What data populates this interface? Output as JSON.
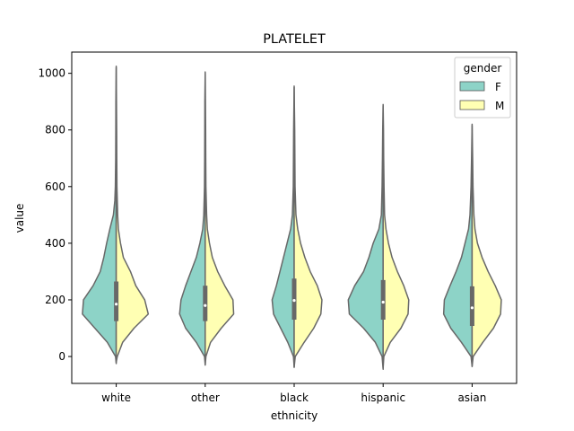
{
  "chart_data": {
    "type": "violin",
    "title": "PLATELET",
    "xlabel": "ethnicity",
    "ylabel": "value",
    "ylim": [
      -95,
      1075
    ],
    "yticks": [
      0,
      200,
      400,
      600,
      800,
      1000
    ],
    "categories": [
      "white",
      "other",
      "black",
      "hispanic",
      "asian"
    ],
    "split": true,
    "legend": {
      "title": "gender",
      "placement": "top-right",
      "entries": [
        {
          "label": "F",
          "color": "#8dd3c7"
        },
        {
          "label": "M",
          "color": "#ffffb3"
        }
      ]
    },
    "series": [
      {
        "name": "F",
        "color": "#8dd3c7",
        "side": "left",
        "violins": [
          {
            "category": "white",
            "min": -25,
            "max": 1025,
            "median": 185,
            "q1": 125,
            "q3": 265,
            "density": [
              [
                -25,
                0
              ],
              [
                0,
                0.02
              ],
              [
                50,
                0.25
              ],
              [
                100,
                0.6
              ],
              [
                150,
                0.95
              ],
              [
                200,
                0.92
              ],
              [
                250,
                0.65
              ],
              [
                300,
                0.45
              ],
              [
                350,
                0.35
              ],
              [
                400,
                0.27
              ],
              [
                450,
                0.18
              ],
              [
                500,
                0.08
              ],
              [
                550,
                0.04
              ],
              [
                600,
                0.025
              ],
              [
                700,
                0.015
              ],
              [
                800,
                0.012
              ],
              [
                900,
                0.01
              ],
              [
                1025,
                0
              ]
            ]
          },
          {
            "category": "other",
            "min": -30,
            "max": 1005,
            "median": 180,
            "q1": 125,
            "q3": 250,
            "density": [
              [
                -30,
                0
              ],
              [
                0,
                0.02
              ],
              [
                50,
                0.25
              ],
              [
                100,
                0.55
              ],
              [
                150,
                0.72
              ],
              [
                200,
                0.68
              ],
              [
                250,
                0.55
              ],
              [
                300,
                0.4
              ],
              [
                350,
                0.25
              ],
              [
                400,
                0.15
              ],
              [
                450,
                0.07
              ],
              [
                500,
                0.04
              ],
              [
                600,
                0.02
              ],
              [
                700,
                0.015
              ],
              [
                800,
                0.012
              ],
              [
                900,
                0.01
              ],
              [
                1005,
                0
              ]
            ]
          },
          {
            "category": "black",
            "min": -38,
            "max": 955,
            "median": 198,
            "q1": 130,
            "q3": 275,
            "density": [
              [
                -38,
                0
              ],
              [
                0,
                0.02
              ],
              [
                50,
                0.18
              ],
              [
                100,
                0.38
              ],
              [
                150,
                0.58
              ],
              [
                200,
                0.62
              ],
              [
                250,
                0.5
              ],
              [
                300,
                0.4
              ],
              [
                350,
                0.3
              ],
              [
                400,
                0.2
              ],
              [
                450,
                0.1
              ],
              [
                500,
                0.05
              ],
              [
                600,
                0.025
              ],
              [
                700,
                0.02
              ],
              [
                800,
                0.015
              ],
              [
                955,
                0
              ]
            ]
          },
          {
            "category": "hispanic",
            "min": -45,
            "max": 890,
            "median": 192,
            "q1": 130,
            "q3": 270,
            "density": [
              [
                -45,
                0
              ],
              [
                0,
                0.03
              ],
              [
                50,
                0.22
              ],
              [
                100,
                0.55
              ],
              [
                150,
                0.95
              ],
              [
                200,
                0.98
              ],
              [
                250,
                0.8
              ],
              [
                300,
                0.55
              ],
              [
                350,
                0.4
              ],
              [
                400,
                0.28
              ],
              [
                450,
                0.12
              ],
              [
                500,
                0.05
              ],
              [
                600,
                0.03
              ],
              [
                700,
                0.02
              ],
              [
                800,
                0.012
              ],
              [
                890,
                0
              ]
            ]
          },
          {
            "category": "asian",
            "min": -35,
            "max": 820,
            "median": 172,
            "q1": 108,
            "q3": 248,
            "density": [
              [
                -35,
                0
              ],
              [
                0,
                0.03
              ],
              [
                50,
                0.3
              ],
              [
                100,
                0.6
              ],
              [
                150,
                0.8
              ],
              [
                200,
                0.78
              ],
              [
                250,
                0.62
              ],
              [
                300,
                0.45
              ],
              [
                350,
                0.3
              ],
              [
                400,
                0.2
              ],
              [
                450,
                0.1
              ],
              [
                500,
                0.06
              ],
              [
                600,
                0.03
              ],
              [
                700,
                0.015
              ],
              [
                820,
                0
              ]
            ]
          }
        ]
      },
      {
        "name": "M",
        "color": "#ffffb3",
        "side": "right",
        "violins": [
          {
            "category": "white",
            "min": -20,
            "max": 1020,
            "median": 185,
            "q1": 125,
            "q3": 265,
            "density": [
              [
                -20,
                0
              ],
              [
                0,
                0.03
              ],
              [
                50,
                0.18
              ],
              [
                100,
                0.5
              ],
              [
                150,
                0.9
              ],
              [
                200,
                0.8
              ],
              [
                250,
                0.55
              ],
              [
                300,
                0.4
              ],
              [
                350,
                0.2
              ],
              [
                400,
                0.12
              ],
              [
                450,
                0.06
              ],
              [
                500,
                0.04
              ],
              [
                600,
                0.02
              ],
              [
                700,
                0.015
              ],
              [
                800,
                0.012
              ],
              [
                1020,
                0
              ]
            ]
          },
          {
            "category": "other",
            "min": -30,
            "max": 1000,
            "median": 180,
            "q1": 125,
            "q3": 250,
            "density": [
              [
                -30,
                0
              ],
              [
                0,
                0.02
              ],
              [
                50,
                0.15
              ],
              [
                100,
                0.45
              ],
              [
                150,
                0.8
              ],
              [
                200,
                0.78
              ],
              [
                250,
                0.55
              ],
              [
                300,
                0.35
              ],
              [
                350,
                0.2
              ],
              [
                400,
                0.12
              ],
              [
                450,
                0.06
              ],
              [
                500,
                0.04
              ],
              [
                600,
                0.02
              ],
              [
                700,
                0.015
              ],
              [
                800,
                0.012
              ],
              [
                1000,
                0
              ]
            ]
          },
          {
            "category": "black",
            "min": -38,
            "max": 950,
            "median": 198,
            "q1": 130,
            "q3": 275,
            "density": [
              [
                -38,
                0
              ],
              [
                0,
                0.03
              ],
              [
                50,
                0.28
              ],
              [
                100,
                0.55
              ],
              [
                150,
                0.75
              ],
              [
                200,
                0.78
              ],
              [
                250,
                0.65
              ],
              [
                300,
                0.45
              ],
              [
                350,
                0.3
              ],
              [
                400,
                0.18
              ],
              [
                450,
                0.1
              ],
              [
                500,
                0.05
              ],
              [
                600,
                0.025
              ],
              [
                700,
                0.02
              ],
              [
                800,
                0.015
              ],
              [
                950,
                0
              ]
            ]
          },
          {
            "category": "hispanic",
            "min": -40,
            "max": 885,
            "median": 192,
            "q1": 130,
            "q3": 270,
            "density": [
              [
                -40,
                0
              ],
              [
                0,
                0.02
              ],
              [
                50,
                0.2
              ],
              [
                100,
                0.5
              ],
              [
                150,
                0.7
              ],
              [
                200,
                0.72
              ],
              [
                250,
                0.58
              ],
              [
                300,
                0.4
              ],
              [
                350,
                0.25
              ],
              [
                400,
                0.15
              ],
              [
                450,
                0.08
              ],
              [
                500,
                0.04
              ],
              [
                600,
                0.025
              ],
              [
                700,
                0.015
              ],
              [
                800,
                0.01
              ],
              [
                885,
                0
              ]
            ]
          },
          {
            "category": "asian",
            "min": -35,
            "max": 815,
            "median": 172,
            "q1": 108,
            "q3": 248,
            "density": [
              [
                -35,
                0
              ],
              [
                0,
                0.03
              ],
              [
                50,
                0.3
              ],
              [
                100,
                0.6
              ],
              [
                150,
                0.8
              ],
              [
                200,
                0.82
              ],
              [
                250,
                0.65
              ],
              [
                300,
                0.45
              ],
              [
                350,
                0.28
              ],
              [
                400,
                0.15
              ],
              [
                450,
                0.08
              ],
              [
                500,
                0.05
              ],
              [
                600,
                0.025
              ],
              [
                700,
                0.015
              ],
              [
                815,
                0
              ]
            ]
          }
        ]
      }
    ]
  }
}
